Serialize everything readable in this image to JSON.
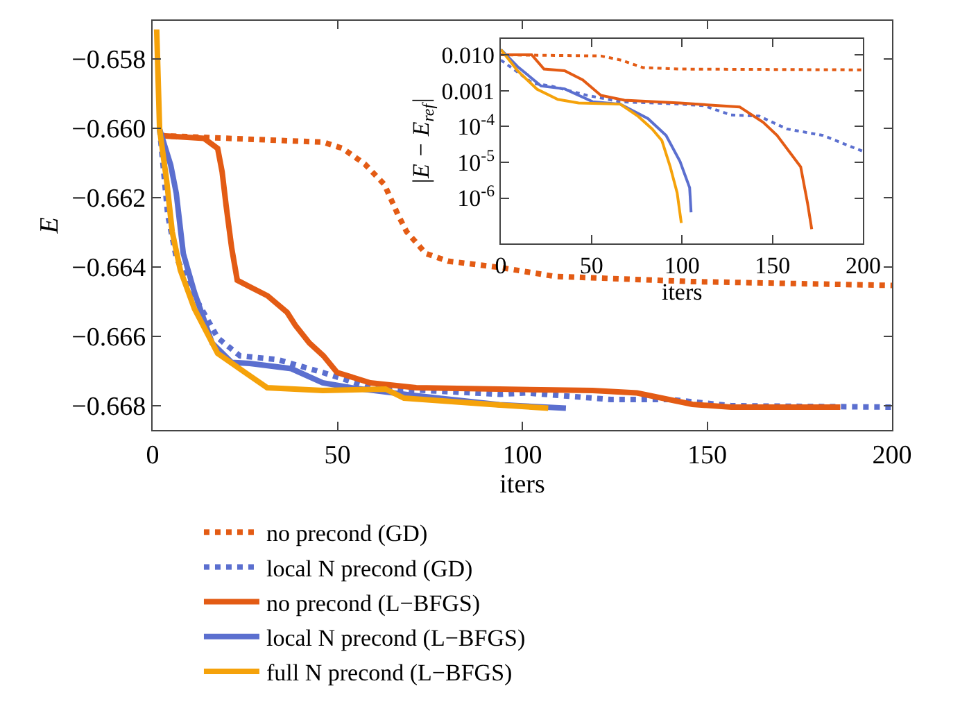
{
  "chart_data": [
    {
      "type": "line",
      "xlabel": "iters",
      "ylabel": "E",
      "xlim": [
        0,
        200
      ],
      "xticks": [
        0,
        50,
        100,
        150,
        200
      ],
      "ylim": [
        -0.6687,
        -0.6569
      ],
      "yticks": [
        {
          "value": -0.658,
          "label": "−0.658"
        },
        {
          "value": -0.66,
          "label": "−0.660"
        },
        {
          "value": -0.662,
          "label": "−0.662"
        },
        {
          "value": -0.664,
          "label": "−0.664"
        },
        {
          "value": -0.666,
          "label": "−0.666"
        },
        {
          "value": -0.668,
          "label": "−0.668"
        }
      ],
      "legend": "bottom",
      "marker": "none",
      "series": [
        {
          "name": "no precond (GD)",
          "color": "#e35b14",
          "line_style": "dotted",
          "x": [
            1.9,
            46.2,
            51.4,
            57.4,
            62.7,
            66.4,
            68.7,
            73.9,
            79.9,
            93.8,
            108.8,
            146,
            200
          ],
          "values": [
            -0.66021,
            -0.6604,
            -0.66058,
            -0.66103,
            -0.66162,
            -0.6625,
            -0.66298,
            -0.66361,
            -0.66383,
            -0.66401,
            -0.66427,
            -0.66442,
            -0.66453
          ]
        },
        {
          "name": "local N precond (GD)",
          "color": "#5b6fcf",
          "line_style": "dotted",
          "x": [
            1.9,
            3,
            4.1,
            6.4,
            11.3,
            17.6,
            23.6,
            33.8,
            46,
            59,
            94,
            101,
            124,
            140,
            156.5,
            200
          ],
          "values": [
            -0.66003,
            -0.66125,
            -0.6625,
            -0.66372,
            -0.66483,
            -0.66604,
            -0.66656,
            -0.66667,
            -0.66704,
            -0.66748,
            -0.66767,
            -0.66763,
            -0.66782,
            -0.66782,
            -0.668,
            -0.66804
          ]
        },
        {
          "name": "no precond (L−BFGS)",
          "color": "#e35b14",
          "line_style": "solid",
          "x": [
            1.9,
            13.9,
            17.6,
            18.8,
            19.9,
            21.4,
            22.9,
            26.3,
            31.1,
            36.4,
            38.6,
            42.4,
            46.2,
            49.9,
            58.9,
            71.3,
            93.8,
            119,
            131,
            146,
            156.5,
            186
          ],
          "values": [
            -0.66021,
            -0.66029,
            -0.66058,
            -0.66125,
            -0.66224,
            -0.66346,
            -0.66438,
            -0.66457,
            -0.66483,
            -0.66531,
            -0.66568,
            -0.66619,
            -0.66656,
            -0.66704,
            -0.66734,
            -0.66748,
            -0.66752,
            -0.66756,
            -0.66763,
            -0.66796,
            -0.66804,
            -0.66804
          ]
        },
        {
          "name": "local N precond (L−BFGS)",
          "color": "#5b6fcf",
          "line_style": "solid",
          "x": [
            1.9,
            4.9,
            6.4,
            8.3,
            11.3,
            16.1,
            21.4,
            26.3,
            37.5,
            46,
            53.7,
            71.3,
            93.8,
            111.8
          ],
          "values": [
            -0.66003,
            -0.66106,
            -0.66187,
            -0.66361,
            -0.66472,
            -0.66619,
            -0.66675,
            -0.66678,
            -0.66693,
            -0.66734,
            -0.66748,
            -0.66771,
            -0.66797,
            -0.66807
          ]
        },
        {
          "name": "full N precond (L−BFGS)",
          "color": "#f5a20a",
          "line_style": "solid",
          "x": [
            1.1,
            1.9,
            3.8,
            5.3,
            7.5,
            11.3,
            17.6,
            25,
            31,
            46,
            63,
            68,
            94,
            107
          ],
          "values": [
            -0.65715,
            -0.66003,
            -0.66151,
            -0.66298,
            -0.66409,
            -0.6652,
            -0.66649,
            -0.66704,
            -0.66748,
            -0.66756,
            -0.66752,
            -0.66778,
            -0.66798,
            -0.66807
          ]
        }
      ]
    },
    {
      "type": "line",
      "xlabel": "iters",
      "ylabel": "|E − E$_{ref}$|",
      "log": "y",
      "xlim": [
        0,
        200
      ],
      "xticks": [
        0,
        50,
        100,
        150,
        200
      ],
      "ylim": [
        5.4e-08,
        0.028
      ],
      "yticks": [
        {
          "value": 0.01,
          "label": "0.010"
        },
        {
          "value": 0.001,
          "label": "0.001"
        },
        {
          "value": 0.0001,
          "label": "10$^{-4}$"
        },
        {
          "value": 1e-05,
          "label": "10$^{-5}$"
        },
        {
          "value": 1e-06,
          "label": "10$^{-6}$"
        }
      ],
      "marker": "none",
      "series": [
        {
          "color": "#e35b14",
          "line_style": "dotted",
          "x": [
            0,
            55.2,
            66.4,
            78.4,
            98.9,
            200
          ],
          "values": [
            0.01,
            0.0093,
            0.0071,
            0.0044,
            0.004,
            0.0038
          ]
        },
        {
          "color": "#5b6fcf",
          "line_style": "dotted",
          "x": [
            0,
            6.9,
            17.6,
            27.6,
            47.5,
            65.9,
            98.9,
            112,
            127,
            142.5,
            157.9,
            177.8,
            200
          ],
          "values": [
            0.0071,
            0.004,
            0.0016,
            0.00135,
            0.00074,
            0.00049,
            0.00042,
            0.00038,
            0.00021,
            0.000195,
            8.5e-05,
            5.6e-05,
            2e-05
          ]
        },
        {
          "color": "#e35b14",
          "line_style": "solid",
          "x": [
            0,
            17,
            23.8,
            35.2,
            45.2,
            55.2,
            68.2,
            98.9,
            131.8,
            144.8,
            152.5,
            165.5,
            169.3,
            171.6
          ],
          "values": [
            0.01,
            0.01,
            0.004,
            0.0036,
            0.002,
            0.00074,
            0.00054,
            0.00045,
            0.00035,
            0.00013,
            5.6e-05,
            7.4e-06,
            7.1e-07,
            1.35e-07
          ]
        },
        {
          "color": "#5b6fcf",
          "line_style": "solid",
          "x": [
            0,
            9.2,
            22.2,
            35.2,
            50.6,
            65.9,
            81.2,
            91.2,
            98.9,
            104.2,
            105
          ],
          "values": [
            0.014,
            0.0047,
            0.00135,
            0.00112,
            0.00049,
            0.00042,
            0.000166,
            5.6e-05,
            1.05e-05,
            1.95e-06,
            4e-07
          ]
        },
        {
          "color": "#f5a20a",
          "line_style": "solid",
          "x": [
            0,
            9.2,
            19.9,
            31.4,
            42.9,
            65.9,
            75.9,
            83.5,
            88.9,
            93.5,
            97.3,
            99.6
          ],
          "values": [
            0.014,
            0.0036,
            0.0011,
            0.00057,
            0.00045,
            0.00042,
            0.00019,
            8.5e-05,
            4e-05,
            7.4e-06,
            1.4e-06,
            2e-07
          ]
        }
      ]
    }
  ]
}
